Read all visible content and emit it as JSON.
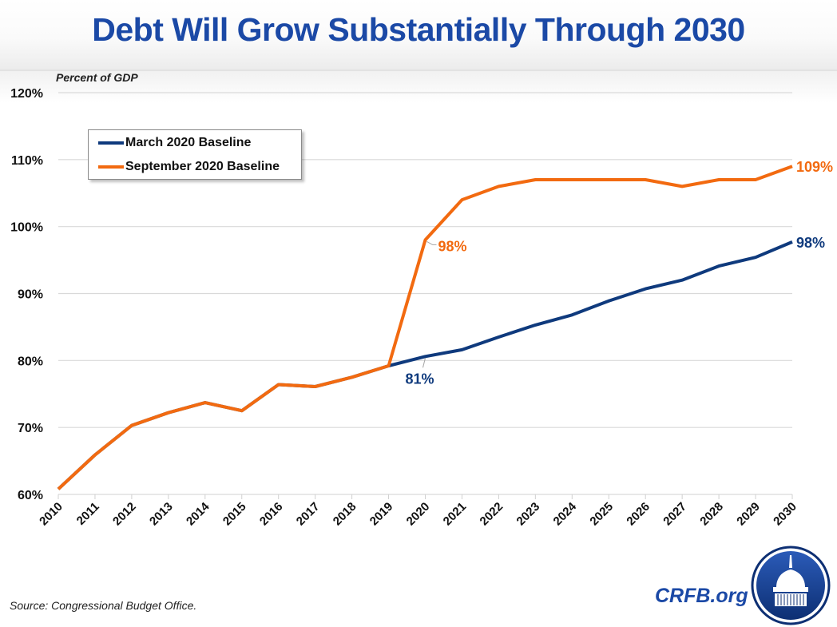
{
  "header": {
    "title": "Debt Will Grow Substantially Through 2030"
  },
  "footer": {
    "source": "Source: Congressional Budget Office.",
    "brand": "CRFB.org",
    "logo_icon": "capitol-dome-icon"
  },
  "chart_data": {
    "type": "line",
    "title": "Debt Will Grow Substantially Through 2030",
    "xlabel": "",
    "ylabel": "Percent of GDP",
    "ylim": [
      60,
      120
    ],
    "yticks": [
      60,
      70,
      80,
      90,
      100,
      110,
      120
    ],
    "ytick_labels": [
      "60%",
      "70%",
      "80%",
      "90%",
      "100%",
      "110%",
      "120%"
    ],
    "grid": true,
    "legend_position": "top-left",
    "x": [
      "2010",
      "2011",
      "2012",
      "2013",
      "2014",
      "2015",
      "2016",
      "2017",
      "2018",
      "2019",
      "2020",
      "2021",
      "2022",
      "2023",
      "2024",
      "2025",
      "2026",
      "2027",
      "2028",
      "2029",
      "2030"
    ],
    "series": [
      {
        "name": "March 2020 Baseline",
        "color": "#0f3a7d",
        "values": [
          60.8,
          65.9,
          70.3,
          72.2,
          73.7,
          72.5,
          76.4,
          76.1,
          77.5,
          79.2,
          80.6,
          81.6,
          83.5,
          85.3,
          86.8,
          88.9,
          90.7,
          92.0,
          94.1,
          95.4,
          97.7
        ]
      },
      {
        "name": "September 2020 Baseline",
        "color": "#f26a10",
        "values": [
          60.8,
          65.9,
          70.3,
          72.2,
          73.7,
          72.5,
          76.4,
          76.1,
          77.5,
          79.2,
          98.0,
          104.0,
          106.0,
          107.0,
          107.0,
          107.0,
          107.0,
          106.0,
          107.0,
          107.0,
          109.0
        ]
      }
    ],
    "annotations": [
      {
        "series": "September 2020 Baseline",
        "x": "2020",
        "text": "98%",
        "leader_line": true
      },
      {
        "series": "March 2020 Baseline",
        "x": "2020",
        "text": "81%",
        "leader_line": true
      },
      {
        "series": "September 2020 Baseline",
        "x": "2030",
        "text": "109%"
      },
      {
        "series": "March 2020 Baseline",
        "x": "2030",
        "text": "98%"
      }
    ]
  }
}
